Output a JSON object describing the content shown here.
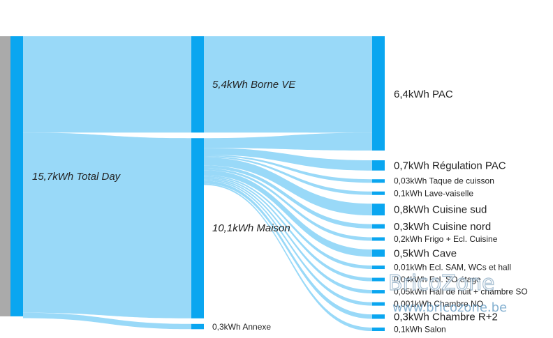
{
  "chart_data": {
    "type": "sankey",
    "unit": "kWh",
    "colors": {
      "link": "#99d9f8",
      "node": "#0aa6f0",
      "source_bar": "#aaaaaa",
      "label": "#222222",
      "source_label": "#2b5d80"
    },
    "nodes": [
      {
        "id": "total",
        "label": "15,7kWh Total Day",
        "value": 15.7,
        "level": 0
      },
      {
        "id": "borne",
        "label": "5,4kWh Borne VE",
        "value": 5.4,
        "level": 1
      },
      {
        "id": "maison",
        "label": "10,1kWh Maison",
        "value": 10.1,
        "level": 1
      },
      {
        "id": "annexe",
        "label": "0,3kWh Annexe",
        "value": 0.3,
        "level": 1
      },
      {
        "id": "pac",
        "label": "6,4kWh PAC",
        "value": 6.4,
        "level": 2
      },
      {
        "id": "regpac",
        "label": "0,7kWh Régulation PAC",
        "value": 0.7,
        "level": 2
      },
      {
        "id": "taque",
        "label": "0,03kWh Taque de cuisson",
        "value": 0.03,
        "level": 2
      },
      {
        "id": "lave",
        "label": "0,1kWh Lave-vaiselle",
        "value": 0.1,
        "level": 2
      },
      {
        "id": "cuisud",
        "label": "0,8kWh Cuisine sud",
        "value": 0.8,
        "level": 2
      },
      {
        "id": "cuinord",
        "label": "0,3kWh Cuisine nord",
        "value": 0.3,
        "level": 2
      },
      {
        "id": "frigo",
        "label": "0,2kWh Frigo + Ecl. Cuisine",
        "value": 0.2,
        "level": 2
      },
      {
        "id": "cave",
        "label": "0,5kWh Cave",
        "value": 0.5,
        "level": 2
      },
      {
        "id": "eclsam",
        "label": "0,01kWh Ecl. SAM, WCs et hall",
        "value": 0.01,
        "level": 2
      },
      {
        "id": "eclso",
        "label": "0,04kWh Ecl. SO étage",
        "value": 0.04,
        "level": 2
      },
      {
        "id": "hall",
        "label": "0,05kWh Hall de nuit + chambre SO",
        "value": 0.05,
        "level": 2
      },
      {
        "id": "chno",
        "label": "0,001kWh Chambre NO",
        "value": 0.001,
        "level": 2
      },
      {
        "id": "chr2",
        "label": "0,3kWh Chambre R+2",
        "value": 0.3,
        "level": 2
      },
      {
        "id": "salon",
        "label": "0,1kWh Salon",
        "value": 0.1,
        "level": 2
      }
    ],
    "links": [
      {
        "source": "total",
        "target": "borne",
        "value": 5.4
      },
      {
        "source": "total",
        "target": "maison",
        "value": 10.1
      },
      {
        "source": "total",
        "target": "annexe",
        "value": 0.3
      },
      {
        "source": "borne",
        "target": "pac",
        "value": 5.4
      },
      {
        "source": "maison",
        "target": "pac",
        "value": 1.0
      },
      {
        "source": "maison",
        "target": "regpac",
        "value": 0.7
      },
      {
        "source": "maison",
        "target": "taque",
        "value": 0.03
      },
      {
        "source": "maison",
        "target": "lave",
        "value": 0.1
      },
      {
        "source": "maison",
        "target": "cuisud",
        "value": 0.8
      },
      {
        "source": "maison",
        "target": "cuinord",
        "value": 0.3
      },
      {
        "source": "maison",
        "target": "frigo",
        "value": 0.2
      },
      {
        "source": "maison",
        "target": "cave",
        "value": 0.5
      },
      {
        "source": "maison",
        "target": "eclsam",
        "value": 0.01
      },
      {
        "source": "maison",
        "target": "eclso",
        "value": 0.04
      },
      {
        "source": "maison",
        "target": "hall",
        "value": 0.05
      },
      {
        "source": "maison",
        "target": "chno",
        "value": 0.001
      },
      {
        "source": "maison",
        "target": "chr2",
        "value": 0.3
      },
      {
        "source": "maison",
        "target": "salon",
        "value": 0.1
      }
    ]
  },
  "watermark": {
    "brand": "BricoZone",
    "url": "www.bricozone.be"
  }
}
